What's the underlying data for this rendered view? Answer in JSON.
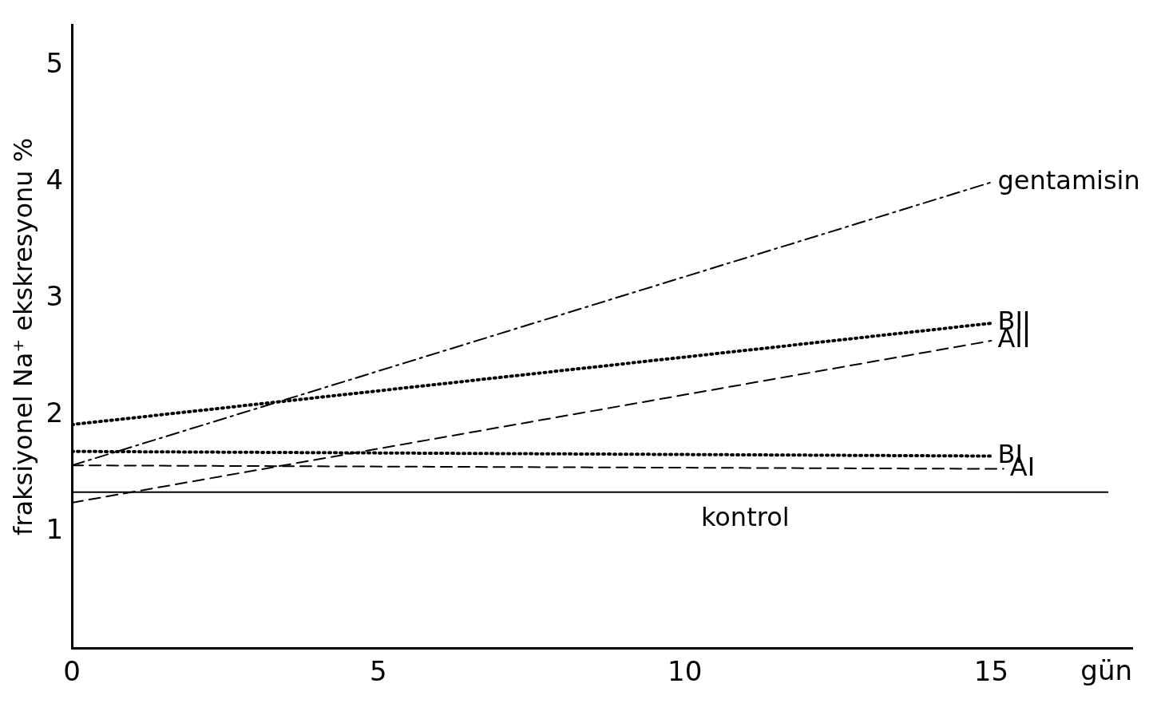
{
  "chart_data": {
    "type": "line",
    "xlabel": "gün",
    "ylabel": "fraksiyonel Na⁺ ekskresyonu %",
    "xlim": [
      0,
      17.3
    ],
    "xticks": [
      0,
      5,
      10,
      15
    ],
    "ylim": [
      0,
      5.35
    ],
    "yticks": [
      1,
      2,
      3,
      4,
      5
    ],
    "grid": false,
    "legend": false,
    "series": [
      {
        "name": "gentamisin",
        "color": "#000000",
        "line_style": "dashdot",
        "x": [
          0,
          15
        ],
        "values": [
          1.57,
          4.0
        ]
      },
      {
        "name": "BII",
        "color": "#000000",
        "line_style": "dotted",
        "x": [
          0,
          15
        ],
        "values": [
          1.92,
          2.79
        ]
      },
      {
        "name": "AII",
        "color": "#000000",
        "line_style": "dashed",
        "x": [
          0,
          15
        ],
        "values": [
          1.25,
          2.64
        ]
      },
      {
        "name": "BI",
        "color": "#000000",
        "line_style": "dotted",
        "x": [
          0,
          15
        ],
        "values": [
          1.69,
          1.65
        ]
      },
      {
        "name": "AI",
        "color": "#000000",
        "line_style": "dashed",
        "x": [
          0,
          15.2
        ],
        "values": [
          1.57,
          1.54
        ]
      },
      {
        "name": "kontrol",
        "color": "#000000",
        "line_style": "solid",
        "x": [
          0,
          16.9
        ],
        "values": [
          1.34,
          1.34
        ]
      }
    ]
  }
}
